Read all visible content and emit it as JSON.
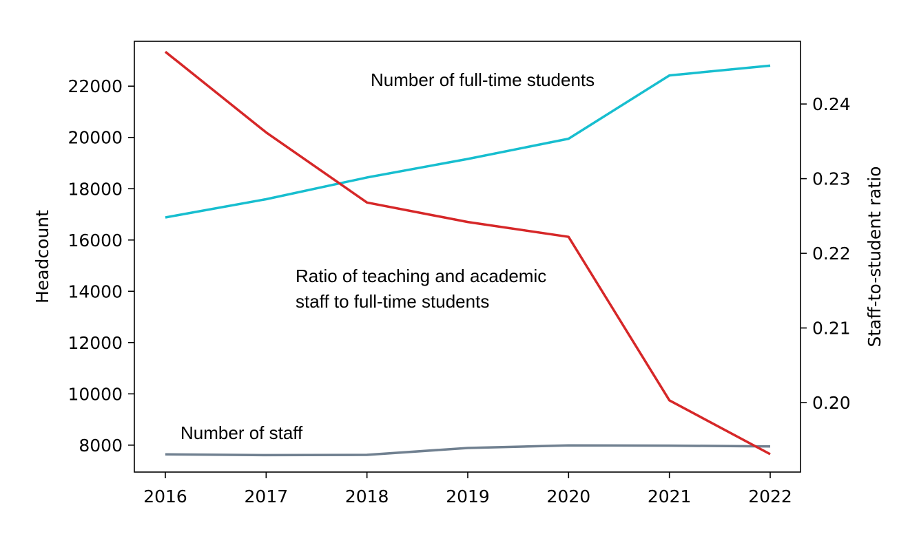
{
  "chart_data": {
    "type": "line",
    "title": "",
    "x": [
      2016,
      2017,
      2018,
      2019,
      2020,
      2021,
      2022
    ],
    "x_tick_labels": [
      "2016",
      "2017",
      "2018",
      "2019",
      "2020",
      "2021",
      "2022"
    ],
    "left_axis": {
      "label": "Headcount",
      "ylim": [
        6950,
        23750
      ],
      "ticks": [
        8000,
        10000,
        12000,
        14000,
        16000,
        18000,
        20000,
        22000
      ],
      "tick_labels": [
        "8000",
        "10000",
        "12000",
        "14000",
        "16000",
        "18000",
        "20000",
        "22000"
      ]
    },
    "right_axis": {
      "label": "Staff-to-student ratio",
      "ylim": [
        0.1907,
        0.2484
      ],
      "ticks": [
        0.2,
        0.21,
        0.22,
        0.23,
        0.24
      ],
      "tick_labels": [
        "0.20",
        "0.21",
        "0.22",
        "0.23",
        "0.24"
      ]
    },
    "series": [
      {
        "name": "Number of full-time students",
        "axis": "left",
        "color": "#17becf",
        "values": [
          16880,
          17590,
          18440,
          19160,
          19950,
          22420,
          22800
        ]
      },
      {
        "name": "Number of staff",
        "axis": "left",
        "color": "#708090",
        "values": [
          7640,
          7610,
          7620,
          7890,
          7990,
          7980,
          7950
        ]
      },
      {
        "name": "Ratio of teaching and academic staff to full-time students",
        "axis": "right",
        "color": "#d62728",
        "values": [
          0.247,
          0.2362,
          0.2268,
          0.2242,
          0.2222,
          0.2003,
          0.1931
        ]
      }
    ],
    "annotations": [
      {
        "lines": [
          "Number of full-time students"
        ]
      },
      {
        "lines": [
          "Ratio of teaching and academic",
          "staff to full-time students"
        ]
      },
      {
        "lines": [
          "Number of staff"
        ]
      }
    ],
    "grid": false,
    "legend": "none"
  }
}
